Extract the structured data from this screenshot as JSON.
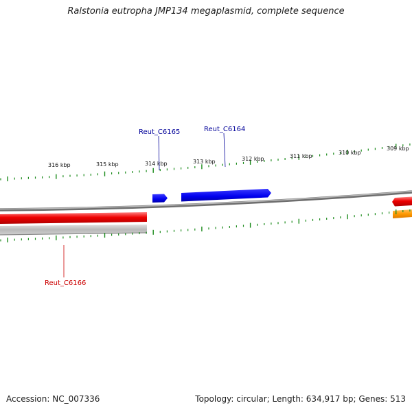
{
  "title": "Ralstonia eutropha JMP134 megaplasmid, complete sequence",
  "footer": {
    "accession": "Accession: NC_007336",
    "summary": "Topology: circular; Length: 634,917 bp; Genes: 513"
  },
  "map": {
    "ticks_major": [
      "316 kbp",
      "315 kbp",
      "314 kbp",
      "313 kbp",
      "312 kbp",
      "311 kbp",
      "310 kbp",
      "309 kbp"
    ],
    "gene_labels": [
      {
        "id": "Reut_C6165",
        "text": "Reut_C6165",
        "color": "#000099"
      },
      {
        "id": "Reut_C6164",
        "text": "Reut_C6164",
        "color": "#000099"
      },
      {
        "id": "Reut_C6166",
        "text": "Reut_C6166",
        "color": "#cc0000"
      }
    ],
    "colors": {
      "tick": "#1a8a1a",
      "forward_gene": "#0000ee",
      "reverse_gene": "#ee0000",
      "orange_feature": "#ff9900",
      "backbone": "#9a9a9a"
    }
  }
}
